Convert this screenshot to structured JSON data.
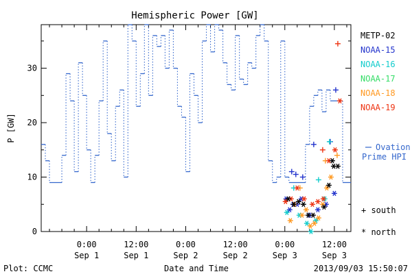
{
  "chart_data": {
    "type": "scatter",
    "title": "Hemispheric Power [GW]",
    "ylabel": "P [GW]",
    "xlabel": "Date and Time",
    "ylim": [
      0,
      38
    ],
    "xlim": [
      "2013-08-31 13:00",
      "2013-09-03 16:00"
    ],
    "yticks": [
      0,
      10,
      20,
      30
    ],
    "xticks": [
      {
        "time": "2013-09-01 00:00",
        "line1": "0:00",
        "line2": "Sep 1"
      },
      {
        "time": "2013-09-01 12:00",
        "line1": "12:00",
        "line2": "Sep 1"
      },
      {
        "time": "2013-09-02 00:00",
        "line1": "0:00",
        "line2": "Sep 2"
      },
      {
        "time": "2013-09-02 12:00",
        "line1": "12:00",
        "line2": "Sep 2"
      },
      {
        "time": "2013-09-03 00:00",
        "line1": "0:00",
        "line2": "Sep 3"
      },
      {
        "time": "2013-09-03 12:00",
        "line1": "12:00",
        "line2": "Sep 3"
      }
    ],
    "ovation": {
      "name": "Ovation Prime HPI",
      "label_line1": "Ovation",
      "label_line2": "Prime HPI",
      "color": "#3366cc",
      "steps": [
        [
          "2013-08-31 13:00",
          16
        ],
        [
          "2013-08-31 14:00",
          13
        ],
        [
          "2013-08-31 15:00",
          9
        ],
        [
          "2013-08-31 18:00",
          14
        ],
        [
          "2013-08-31 19:00",
          29
        ],
        [
          "2013-08-31 20:00",
          24
        ],
        [
          "2013-08-31 21:00",
          11
        ],
        [
          "2013-08-31 22:00",
          31
        ],
        [
          "2013-08-31 23:00",
          25
        ],
        [
          "2013-09-01 00:00",
          15
        ],
        [
          "2013-09-01 01:00",
          9
        ],
        [
          "2013-09-01 02:00",
          14
        ],
        [
          "2013-09-01 03:00",
          24
        ],
        [
          "2013-09-01 04:00",
          35
        ],
        [
          "2013-09-01 05:00",
          18
        ],
        [
          "2013-09-01 06:00",
          13
        ],
        [
          "2013-09-01 07:00",
          23
        ],
        [
          "2013-09-01 08:00",
          26
        ],
        [
          "2013-09-01 09:00",
          10
        ],
        [
          "2013-09-01 10:00",
          38
        ],
        [
          "2013-09-01 11:00",
          35
        ],
        [
          "2013-09-01 12:00",
          23
        ],
        [
          "2013-09-01 13:00",
          29
        ],
        [
          "2013-09-01 14:00",
          38
        ],
        [
          "2013-09-01 15:00",
          25
        ],
        [
          "2013-09-01 16:00",
          36
        ],
        [
          "2013-09-01 17:00",
          34
        ],
        [
          "2013-09-01 18:00",
          36
        ],
        [
          "2013-09-01 19:00",
          30
        ],
        [
          "2013-09-01 20:00",
          37
        ],
        [
          "2013-09-01 21:00",
          30
        ],
        [
          "2013-09-01 22:00",
          23
        ],
        [
          "2013-09-01 23:00",
          21
        ],
        [
          "2013-09-02 00:00",
          11
        ],
        [
          "2013-09-02 01:00",
          29
        ],
        [
          "2013-09-02 02:00",
          25
        ],
        [
          "2013-09-02 03:00",
          20
        ],
        [
          "2013-09-02 04:00",
          35
        ],
        [
          "2013-09-02 05:00",
          38
        ],
        [
          "2013-09-02 06:00",
          33
        ],
        [
          "2013-09-02 07:00",
          38
        ],
        [
          "2013-09-02 08:00",
          37
        ],
        [
          "2013-09-02 09:00",
          31
        ],
        [
          "2013-09-02 10:00",
          27
        ],
        [
          "2013-09-02 11:00",
          26
        ],
        [
          "2013-09-02 12:00",
          36
        ],
        [
          "2013-09-02 13:00",
          28
        ],
        [
          "2013-09-02 14:00",
          27
        ],
        [
          "2013-09-02 15:00",
          31
        ],
        [
          "2013-09-02 16:00",
          30
        ],
        [
          "2013-09-02 17:00",
          36
        ],
        [
          "2013-09-02 18:00",
          38
        ],
        [
          "2013-09-02 19:00",
          35
        ],
        [
          "2013-09-02 20:00",
          13
        ],
        [
          "2013-09-02 21:00",
          9
        ],
        [
          "2013-09-02 22:00",
          10
        ],
        [
          "2013-09-02 23:00",
          35
        ],
        [
          "2013-09-03 00:00",
          10
        ],
        [
          "2013-09-03 01:00",
          9
        ],
        [
          "2013-09-03 05:00",
          16
        ],
        [
          "2013-09-03 06:00",
          23
        ],
        [
          "2013-09-03 07:00",
          25
        ],
        [
          "2013-09-03 08:00",
          26
        ],
        [
          "2013-09-03 09:00",
          22
        ],
        [
          "2013-09-03 10:00",
          26
        ],
        [
          "2013-09-03 11:00",
          24
        ],
        [
          "2013-09-03 14:00",
          9
        ]
      ],
      "end": "2013-09-03 16:00"
    },
    "satellites": [
      {
        "name": "METP-02",
        "color": "#000000"
      },
      {
        "name": "NOAA-15",
        "color": "#2233cc"
      },
      {
        "name": "NOAA-16",
        "color": "#11cccc"
      },
      {
        "name": "NOAA-17",
        "color": "#33dd66"
      },
      {
        "name": "NOAA-18",
        "color": "#ff9922"
      },
      {
        "name": "NOAA-19",
        "color": "#ee3311"
      }
    ],
    "symbols": {
      "south": "+ south",
      "north": "* north"
    },
    "points": [
      {
        "sat": "NOAA-15",
        "hemi": "north",
        "x": "2013-09-03 00:20",
        "y": 6
      },
      {
        "sat": "NOAA-15",
        "hemi": "north",
        "x": "2013-09-03 01:10",
        "y": 4
      },
      {
        "sat": "NOAA-15",
        "hemi": "north",
        "x": "2013-09-03 02:00",
        "y": 5
      },
      {
        "sat": "NOAA-15",
        "hemi": "north",
        "x": "2013-09-03 03:00",
        "y": 5
      },
      {
        "sat": "NOAA-15",
        "hemi": "north",
        "x": "2013-09-03 04:00",
        "y": 6
      },
      {
        "sat": "NOAA-15",
        "hemi": "north",
        "x": "2013-09-03 06:00",
        "y": 3
      },
      {
        "sat": "NOAA-15",
        "hemi": "north",
        "x": "2013-09-03 08:00",
        "y": 4
      },
      {
        "sat": "NOAA-15",
        "hemi": "north",
        "x": "2013-09-03 10:00",
        "y": 5
      },
      {
        "sat": "NOAA-15",
        "hemi": "north",
        "x": "2013-09-03 12:00",
        "y": 7
      },
      {
        "sat": "NOAA-15",
        "hemi": "south",
        "x": "2013-09-03 01:40",
        "y": 11
      },
      {
        "sat": "NOAA-15",
        "hemi": "south",
        "x": "2013-09-03 02:40",
        "y": 10.5
      },
      {
        "sat": "NOAA-15",
        "hemi": "south",
        "x": "2013-09-03 04:20",
        "y": 10
      },
      {
        "sat": "NOAA-15",
        "hemi": "south",
        "x": "2013-09-03 07:00",
        "y": 16
      },
      {
        "sat": "NOAA-15",
        "hemi": "south",
        "x": "2013-09-03 11:00",
        "y": 16.5
      },
      {
        "sat": "NOAA-15",
        "hemi": "south",
        "x": "2013-09-03 12:20",
        "y": 26
      },
      {
        "sat": "NOAA-16",
        "hemi": "north",
        "x": "2013-09-03 00:30",
        "y": 3.5
      },
      {
        "sat": "NOAA-16",
        "hemi": "north",
        "x": "2013-09-03 03:30",
        "y": 3
      },
      {
        "sat": "NOAA-16",
        "hemi": "north",
        "x": "2013-09-03 05:20",
        "y": 1.5
      },
      {
        "sat": "NOAA-16",
        "hemi": "north",
        "x": "2013-09-03 06:20",
        "y": 0
      },
      {
        "sat": "NOAA-16",
        "hemi": "north",
        "x": "2013-09-03 07:30",
        "y": 2
      },
      {
        "sat": "NOAA-16",
        "hemi": "north",
        "x": "2013-09-03 09:40",
        "y": 6
      },
      {
        "sat": "NOAA-16",
        "hemi": "south",
        "x": "2013-09-03 02:10",
        "y": 8
      },
      {
        "sat": "NOAA-16",
        "hemi": "south",
        "x": "2013-09-03 08:10",
        "y": 9.5
      },
      {
        "sat": "NOAA-16",
        "hemi": "south",
        "x": "2013-09-03 10:50",
        "y": 16.5
      },
      {
        "sat": "NOAA-18",
        "hemi": "north",
        "x": "2013-09-03 01:20",
        "y": 2
      },
      {
        "sat": "NOAA-18",
        "hemi": "north",
        "x": "2013-09-03 02:20",
        "y": 5
      },
      {
        "sat": "NOAA-18",
        "hemi": "north",
        "x": "2013-09-03 04:10",
        "y": 3
      },
      {
        "sat": "NOAA-18",
        "hemi": "north",
        "x": "2013-09-03 05:10",
        "y": 4
      },
      {
        "sat": "NOAA-18",
        "hemi": "north",
        "x": "2013-09-03 06:10",
        "y": 1
      },
      {
        "sat": "NOAA-18",
        "hemi": "north",
        "x": "2013-09-03 07:10",
        "y": 1.5
      },
      {
        "sat": "NOAA-18",
        "hemi": "north",
        "x": "2013-09-03 08:10",
        "y": 2.5
      },
      {
        "sat": "NOAA-18",
        "hemi": "north",
        "x": "2013-09-03 09:10",
        "y": 5
      },
      {
        "sat": "NOAA-18",
        "hemi": "north",
        "x": "2013-09-03 10:10",
        "y": 8
      },
      {
        "sat": "NOAA-18",
        "hemi": "north",
        "x": "2013-09-03 11:10",
        "y": 10
      },
      {
        "sat": "NOAA-18",
        "hemi": "south",
        "x": "2013-09-03 03:40",
        "y": 8
      },
      {
        "sat": "NOAA-18",
        "hemi": "south",
        "x": "2013-09-03 09:50",
        "y": 13
      },
      {
        "sat": "NOAA-18",
        "hemi": "south",
        "x": "2013-09-03 12:40",
        "y": 14
      },
      {
        "sat": "NOAA-19",
        "hemi": "north",
        "x": "2013-09-03 00:10",
        "y": 5.5
      },
      {
        "sat": "NOAA-19",
        "hemi": "north",
        "x": "2013-09-03 01:30",
        "y": 6
      },
      {
        "sat": "NOAA-19",
        "hemi": "north",
        "x": "2013-09-03 03:00",
        "y": 8
      },
      {
        "sat": "NOAA-19",
        "hemi": "north",
        "x": "2013-09-03 04:40",
        "y": 6
      },
      {
        "sat": "NOAA-19",
        "hemi": "north",
        "x": "2013-09-03 06:40",
        "y": 5
      },
      {
        "sat": "NOAA-19",
        "hemi": "north",
        "x": "2013-09-03 08:00",
        "y": 5.5
      },
      {
        "sat": "NOAA-19",
        "hemi": "north",
        "x": "2013-09-03 09:20",
        "y": 6
      },
      {
        "sat": "NOAA-19",
        "hemi": "north",
        "x": "2013-09-03 10:40",
        "y": 13
      },
      {
        "sat": "NOAA-19",
        "hemi": "north",
        "x": "2013-09-03 12:10",
        "y": 15
      },
      {
        "sat": "NOAA-19",
        "hemi": "north",
        "x": "2013-09-03 13:20",
        "y": 24
      },
      {
        "sat": "NOAA-19",
        "hemi": "south",
        "x": "2013-09-03 09:10",
        "y": 15
      },
      {
        "sat": "NOAA-19",
        "hemi": "south",
        "x": "2013-09-03 12:50",
        "y": 34.5
      },
      {
        "sat": "METP-02",
        "hemi": "north",
        "x": "2013-09-03 00:50",
        "y": 6
      },
      {
        "sat": "METP-02",
        "hemi": "north",
        "x": "2013-09-03 02:10",
        "y": 5
      },
      {
        "sat": "METP-02",
        "hemi": "north",
        "x": "2013-09-03 03:20",
        "y": 5.5
      },
      {
        "sat": "METP-02",
        "hemi": "north",
        "x": "2013-09-03 04:30",
        "y": 5
      },
      {
        "sat": "METP-02",
        "hemi": "north",
        "x": "2013-09-03 05:40",
        "y": 3
      },
      {
        "sat": "METP-02",
        "hemi": "north",
        "x": "2013-09-03 06:50",
        "y": 3
      },
      {
        "sat": "METP-02",
        "hemi": "north",
        "x": "2013-09-03 09:30",
        "y": 4.5
      },
      {
        "sat": "METP-02",
        "hemi": "north",
        "x": "2013-09-03 10:40",
        "y": 8.5
      },
      {
        "sat": "METP-02",
        "hemi": "north",
        "x": "2013-09-03 11:50",
        "y": 12
      },
      {
        "sat": "METP-02",
        "hemi": "north",
        "x": "2013-09-03 12:50",
        "y": 12
      },
      {
        "sat": "METP-02",
        "hemi": "north",
        "x": "2013-09-03 11:30",
        "y": 13
      }
    ],
    "grid": false,
    "legend_placement": "right"
  },
  "footer": {
    "left": "Plot: CCMC",
    "right": "2013/09/03 15:50:07"
  }
}
